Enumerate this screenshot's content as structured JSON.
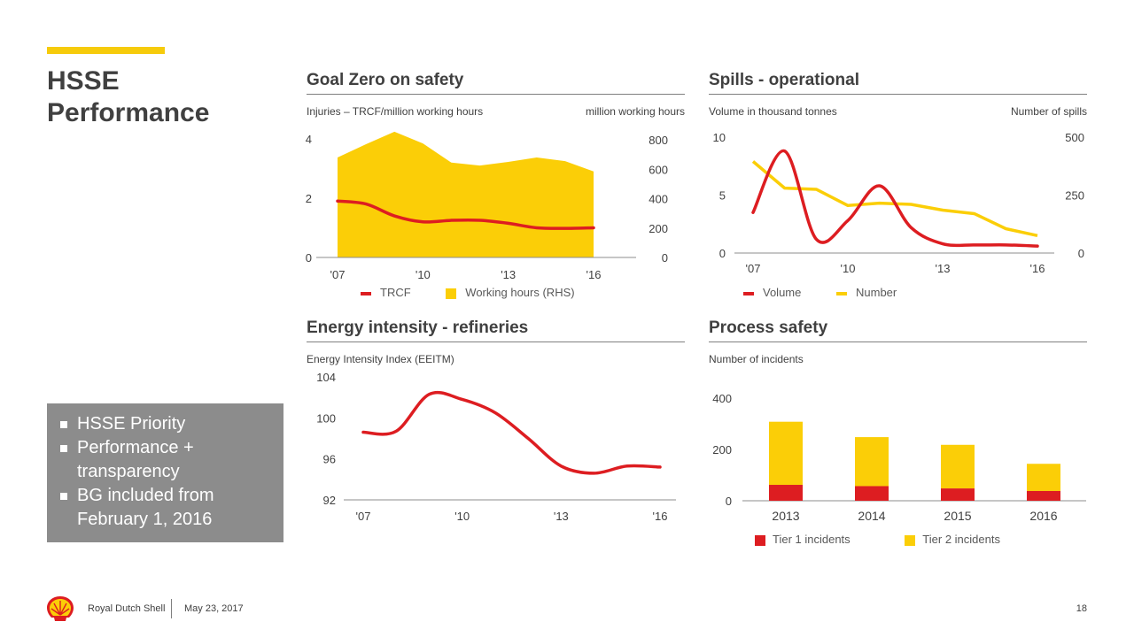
{
  "title": {
    "line1": "HSSE",
    "line2": "Performance"
  },
  "notes": [
    "HSSE Priority",
    "Performance + transparency",
    "BG included from February 1, 2016"
  ],
  "footer": {
    "company": "Royal Dutch Shell",
    "date": "May 23, 2017",
    "page": "18"
  },
  "colors": {
    "red": "#dd1d21",
    "yellow": "#fbce07",
    "bar_red": "#dd1d21",
    "bar_yellow": "#fbce07"
  },
  "chart_data": [
    {
      "id": "goal_zero",
      "type": "area",
      "title": "Goal Zero on safety",
      "subtitle_left": "Injuries – TRCF/million working hours",
      "subtitle_right": "million working hours",
      "x": [
        2007,
        2008,
        2009,
        2010,
        2011,
        2012,
        2013,
        2014,
        2015,
        2016
      ],
      "x_tick_labels": [
        "'07",
        "'10",
        "'13",
        "'16"
      ],
      "x_tick_values": [
        2007,
        2010,
        2013,
        2016
      ],
      "y_left_ticks": [
        0,
        2,
        4
      ],
      "y_left_lim": [
        0,
        4.5
      ],
      "y_right_ticks": [
        0,
        200,
        400,
        600,
        800
      ],
      "y_right_lim": [
        0,
        800
      ],
      "series": [
        {
          "name": "TRCF",
          "axis": "left",
          "kind": "line",
          "values": [
            1.9,
            1.8,
            1.4,
            1.2,
            1.25,
            1.25,
            1.15,
            1.0,
            0.98,
            1.0
          ]
        },
        {
          "name": "Working hours (RHS)",
          "axis": "right",
          "kind": "area",
          "values": [
            680,
            770,
            855,
            775,
            645,
            625,
            650,
            680,
            655,
            585
          ]
        }
      ],
      "legend": [
        "TRCF",
        "Working hours (RHS)"
      ]
    },
    {
      "id": "spills",
      "type": "line",
      "title": "Spills - operational",
      "subtitle_left": "Volume in thousand tonnes",
      "subtitle_right": "Number of spills",
      "x": [
        2007,
        2008,
        2009,
        2010,
        2011,
        2012,
        2013,
        2014,
        2015,
        2016
      ],
      "x_tick_labels": [
        "'07",
        "'10",
        "'13",
        "'16"
      ],
      "x_tick_values": [
        2007,
        2010,
        2013,
        2016
      ],
      "y_left_ticks": [
        0,
        5,
        10
      ],
      "y_left_lim": [
        0,
        10
      ],
      "y_right_ticks": [
        0,
        250,
        500
      ],
      "y_right_lim": [
        0,
        500
      ],
      "series": [
        {
          "name": "Volume",
          "axis": "left",
          "kind": "line",
          "values": [
            3.5,
            8.8,
            1.2,
            2.8,
            5.8,
            2.2,
            0.8,
            0.7,
            0.7,
            0.6
          ]
        },
        {
          "name": "Number",
          "axis": "right",
          "kind": "line",
          "values": [
            395,
            280,
            275,
            205,
            215,
            210,
            185,
            170,
            105,
            75
          ]
        }
      ],
      "legend": [
        "Volume",
        "Number"
      ]
    },
    {
      "id": "energy",
      "type": "line",
      "title": "Energy intensity - refineries",
      "subtitle_left": "Energy Intensity Index (EEITM)",
      "x": [
        2007,
        2008,
        2009,
        2010,
        2011,
        2012,
        2013,
        2014,
        2015,
        2016
      ],
      "x_tick_labels": [
        "'07",
        "'10",
        "'13",
        "'16"
      ],
      "x_tick_values": [
        2007,
        2010,
        2013,
        2016
      ],
      "y_left_ticks": [
        92,
        96,
        100,
        104
      ],
      "y_left_lim": [
        92,
        104
      ],
      "series": [
        {
          "name": "EEI",
          "axis": "left",
          "kind": "line",
          "values": [
            98.6,
            98.7,
            102.3,
            101.8,
            100.5,
            98.0,
            95.3,
            94.6,
            95.3,
            95.2
          ]
        }
      ]
    },
    {
      "id": "process_safety",
      "type": "bar",
      "title": "Process safety",
      "subtitle_left": "Number of incidents",
      "categories": [
        "2013",
        "2014",
        "2015",
        "2016"
      ],
      "y_left_ticks": [
        0,
        200,
        400
      ],
      "ylim": [
        0,
        420
      ],
      "series": [
        {
          "name": "Tier 1 incidents",
          "values": [
            62,
            57,
            48,
            38
          ]
        },
        {
          "name": "Tier 2 incidents",
          "values": [
            246,
            191,
            170,
            106
          ]
        }
      ],
      "legend": [
        "Tier 1 incidents",
        "Tier 2 incidents"
      ]
    }
  ]
}
